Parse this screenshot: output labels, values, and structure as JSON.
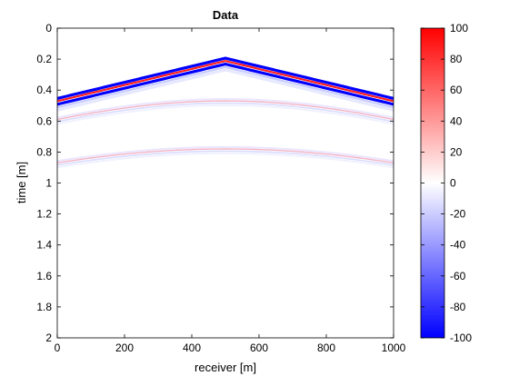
{
  "chart_data": {
    "type": "heatmap",
    "title": "Data",
    "xlabel": "receiver [m]",
    "ylabel": "time [m]",
    "xlim": [
      0,
      1000
    ],
    "ylim": [
      0,
      2
    ],
    "y_reversed": true,
    "xticks": [
      0,
      200,
      400,
      600,
      800,
      1000
    ],
    "xtick_labels": [
      "0",
      "200",
      "400",
      "600",
      "800",
      "1000"
    ],
    "yticks": [
      0,
      0.2,
      0.4,
      0.6,
      0.8,
      1,
      1.2,
      1.4,
      1.6,
      1.8,
      2
    ],
    "ytick_labels": [
      "0",
      "0.2",
      "0.4",
      "0.6",
      "0.8",
      "1",
      "1.2",
      "1.4",
      "1.6",
      "1.8",
      "2"
    ],
    "grid": false,
    "colormap": "blue-white-red",
    "clim": [
      -100,
      100
    ],
    "colorbar": {
      "ticks": [
        100,
        80,
        60,
        40,
        20,
        0,
        -20,
        -40,
        -60,
        -80,
        -100
      ],
      "tick_labels": [
        "100",
        "80",
        "60",
        "40",
        "20",
        "0",
        "-20",
        "-40",
        "-60",
        "-80",
        "-100"
      ],
      "colors": {
        "min": "#0000ff",
        "mid": "#ffffff",
        "max": "#ff0000"
      }
    },
    "events": [
      {
        "name": "direct",
        "shape": "linear",
        "apex_x": 500,
        "apex_t": 0.2,
        "edge_t": 0.46,
        "amplitude": "strong"
      },
      {
        "name": "reflection-1",
        "shape": "hyperbolic",
        "apex_x": 500,
        "apex_t": 0.47,
        "edge_t": 0.59,
        "amplitude": "weak"
      },
      {
        "name": "reflection-2",
        "shape": "hyperbolic",
        "apex_x": 500,
        "apex_t": 0.78,
        "edge_t": 0.87,
        "amplitude": "weak"
      }
    ]
  }
}
